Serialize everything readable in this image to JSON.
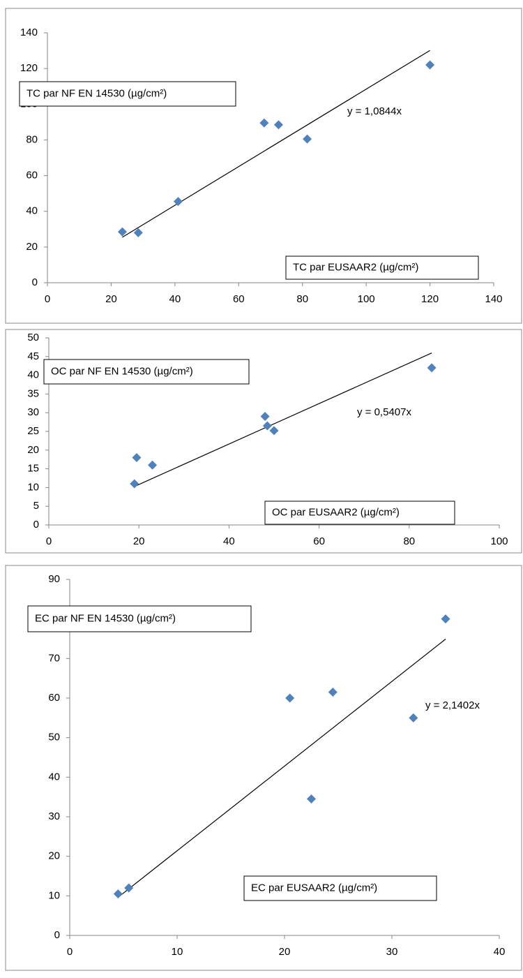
{
  "chart_data": [
    {
      "type": "scatter",
      "x_title": "TC par EUSAAR2 (µg/cm²)",
      "y_title": "TC par NF EN 14530  (µg/cm²)",
      "x": [
        23.5,
        28.5,
        41,
        68,
        72.5,
        81.5,
        120
      ],
      "y": [
        28.5,
        28,
        45.5,
        89.5,
        88.5,
        80.5,
        122
      ],
      "color": "#4f81bd",
      "trendline": {
        "slope": 1.0844,
        "label": "y = 1,0844x"
      },
      "xlim": [
        0,
        140
      ],
      "ylim": [
        0,
        140
      ],
      "xticks": [
        0,
        20,
        40,
        60,
        80,
        100,
        120,
        140
      ],
      "yticks": [
        0,
        20,
        40,
        60,
        80,
        100,
        120,
        140
      ]
    },
    {
      "type": "scatter",
      "x_title": "OC par EUSAAR2 (µg/cm²)",
      "y_title": "OC par NF EN 14530   (µg/cm²)",
      "x": [
        19.5,
        23,
        19,
        48,
        48.5,
        50,
        85
      ],
      "y": [
        18,
        16,
        11,
        29,
        26.5,
        25.2,
        42
      ],
      "color": "#4f81bd",
      "trendline": {
        "slope": 0.5407,
        "label": "y = 0,5407x"
      },
      "xlim": [
        0,
        100
      ],
      "ylim": [
        0,
        50
      ],
      "xticks": [
        0,
        20,
        40,
        60,
        80,
        100
      ],
      "yticks": [
        0,
        5,
        10,
        15,
        20,
        25,
        30,
        35,
        40,
        45,
        50
      ]
    },
    {
      "type": "scatter",
      "x_title": "EC par EUSAAR2 (µg/cm²)",
      "y_title": "EC par NF EN 14530   (µg/cm²)",
      "x": [
        4.5,
        5.5,
        20.5,
        22.5,
        24.5,
        32,
        35
      ],
      "y": [
        10.5,
        12,
        60,
        34.5,
        61.5,
        55,
        80
      ],
      "color": "#4f81bd",
      "trendline": {
        "slope": 2.1402,
        "label": "y = 2,1402x"
      },
      "xlim": [
        0,
        40
      ],
      "ylim": [
        0,
        90
      ],
      "xticks": [
        0,
        10,
        20,
        30,
        40
      ],
      "yticks": [
        0,
        10,
        20,
        30,
        40,
        50,
        60,
        70,
        80,
        90
      ]
    }
  ]
}
